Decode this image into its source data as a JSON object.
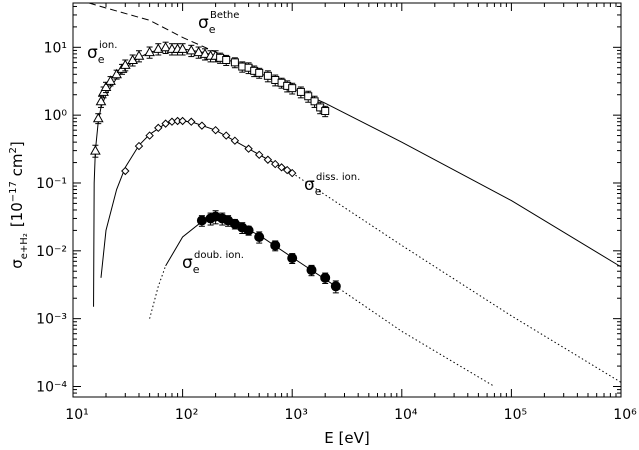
{
  "chart_data": {
    "type": "scatter",
    "xlabel": "E [eV]",
    "ylabel": {
      "symbol": "σ",
      "sub": "e+H₂",
      "open": "[10",
      "sup": "−17",
      "unit": " cm",
      "unit_sup": "2",
      "close": "]"
    },
    "xscale": "log",
    "yscale": "log",
    "xlim": [
      10,
      1000000
    ],
    "ylim": [
      7e-05,
      45
    ],
    "xticks": [
      {
        "value": 10,
        "label": "10¹"
      },
      {
        "value": 100,
        "label": "10²"
      },
      {
        "value": 1000,
        "label": "10³"
      },
      {
        "value": 10000,
        "label": "10⁴"
      },
      {
        "value": 100000,
        "label": "10⁵"
      },
      {
        "value": 1000000,
        "label": "10⁶"
      }
    ],
    "yticks": [
      {
        "value": 0.0001,
        "label": "10⁻⁴"
      },
      {
        "value": 0.001,
        "label": "10⁻³"
      },
      {
        "value": 0.01,
        "label": "10⁻²"
      },
      {
        "value": 0.1,
        "label": "10⁻¹"
      },
      {
        "value": 1,
        "label": "10⁰"
      },
      {
        "value": 10,
        "label": "10¹"
      }
    ],
    "color": "#000000",
    "lines": [
      {
        "style": "dashed",
        "x": [
          14,
          20,
          50,
          100,
          200,
          330
        ],
        "values": [
          45,
          38,
          25,
          14,
          8.5,
          6
        ]
      },
      {
        "style": "solid",
        "x": [
          15.4,
          15.6,
          16,
          17,
          18,
          20,
          25,
          30,
          40,
          50,
          70,
          100,
          150,
          200,
          300,
          500,
          1000,
          2000,
          10000,
          100000,
          1000000
        ],
        "values": [
          0.0015,
          0.1,
          0.3,
          0.8,
          1.3,
          2,
          3.5,
          5,
          7,
          8.5,
          9.5,
          9.5,
          8.5,
          7.5,
          6,
          4.2,
          2.5,
          1.5,
          0.4,
          0.055,
          0.0058
        ]
      },
      {
        "style": "solid",
        "x": [
          18,
          20,
          25,
          30,
          40,
          50,
          70,
          90,
          120,
          200,
          400,
          1000
        ],
        "values": [
          0.004,
          0.02,
          0.08,
          0.17,
          0.36,
          0.52,
          0.75,
          0.82,
          0.8,
          0.6,
          0.32,
          0.14
        ]
      },
      {
        "style": "dotted",
        "x": [
          1000,
          10000,
          100000,
          1000000
        ],
        "values": [
          0.14,
          0.012,
          0.0011,
          0.000115
        ]
      },
      {
        "style": "dotted",
        "x": [
          50,
          60,
          70
        ],
        "values": [
          0.001,
          0.003,
          0.006
        ]
      },
      {
        "style": "solid",
        "x": [
          70,
          100,
          150,
          200,
          300,
          500,
          1000,
          2500
        ],
        "values": [
          0.006,
          0.016,
          0.027,
          0.03,
          0.025,
          0.017,
          0.008,
          0.003
        ]
      },
      {
        "style": "dotted",
        "x": [
          2500,
          10000,
          70000
        ],
        "values": [
          0.003,
          0.00065,
          0.0001
        ]
      }
    ],
    "points": [
      {
        "marker": "triangle",
        "x": [
          16,
          17,
          18,
          19,
          20,
          22,
          25,
          28,
          30,
          35,
          40,
          50,
          60,
          70,
          80,
          90,
          100,
          120,
          140,
          160,
          180,
          200
        ],
        "values": [
          0.3,
          0.9,
          1.6,
          2.2,
          2.6,
          3.2,
          4,
          4.8,
          5.5,
          6.5,
          7.5,
          8.5,
          9.5,
          10,
          9.5,
          9.5,
          9.5,
          9,
          8.5,
          8,
          7.5,
          7.5
        ],
        "errors": [
          0.06,
          0.15,
          0.3,
          0.4,
          0.45,
          0.5,
          0.6,
          0.8,
          1,
          1.2,
          1.4,
          1.6,
          1.8,
          1.9,
          1.8,
          1.8,
          1.8,
          1.7,
          1.6,
          1.5,
          1.4,
          1.4
        ]
      },
      {
        "marker": "square",
        "x": [
          220,
          250,
          300,
          350,
          400,
          450,
          500,
          600,
          700,
          800,
          900,
          1000,
          1200,
          1400,
          1600,
          1800,
          2000
        ],
        "values": [
          7,
          6.5,
          6,
          5.2,
          5,
          4.5,
          4.2,
          3.8,
          3.3,
          3,
          2.7,
          2.5,
          2.2,
          1.9,
          1.6,
          1.3,
          1.15
        ],
        "errors": [
          1.2,
          1.1,
          1,
          0.9,
          0.9,
          0.8,
          0.7,
          0.7,
          0.6,
          0.5,
          0.5,
          0.45,
          0.4,
          0.35,
          0.3,
          0.25,
          0.2
        ]
      },
      {
        "marker": "diamond",
        "x": [
          30,
          40,
          50,
          60,
          70,
          80,
          90,
          100,
          120,
          150,
          200,
          250,
          300,
          400,
          500,
          600,
          700,
          800,
          900,
          1000
        ],
        "values": [
          0.15,
          0.35,
          0.5,
          0.65,
          0.75,
          0.8,
          0.82,
          0.82,
          0.8,
          0.7,
          0.6,
          0.5,
          0.42,
          0.32,
          0.26,
          0.22,
          0.19,
          0.17,
          0.155,
          0.14
        ]
      },
      {
        "marker": "circle",
        "x": [
          150,
          180,
          200,
          230,
          260,
          300,
          350,
          400,
          500,
          700,
          1000,
          1500,
          2000,
          2500
        ],
        "values": [
          0.028,
          0.03,
          0.032,
          0.03,
          0.028,
          0.025,
          0.022,
          0.02,
          0.016,
          0.012,
          0.0078,
          0.0052,
          0.004,
          0.003
        ],
        "errors": [
          0.005,
          0.006,
          0.007,
          0.006,
          0.005,
          0.004,
          0.004,
          0.003,
          0.003,
          0.002,
          0.0013,
          0.0009,
          0.0007,
          0.0006
        ]
      }
    ],
    "annotations": [
      {
        "symbol": "σ",
        "sub": "e",
        "sup": "Bethe"
      },
      {
        "symbol": "σ",
        "sub": "e",
        "sup": "ion."
      },
      {
        "symbol": "σ",
        "sub": "e",
        "sup": "diss. ion."
      },
      {
        "symbol": "σ",
        "sub": "e",
        "sup": "doub. ion."
      }
    ]
  }
}
